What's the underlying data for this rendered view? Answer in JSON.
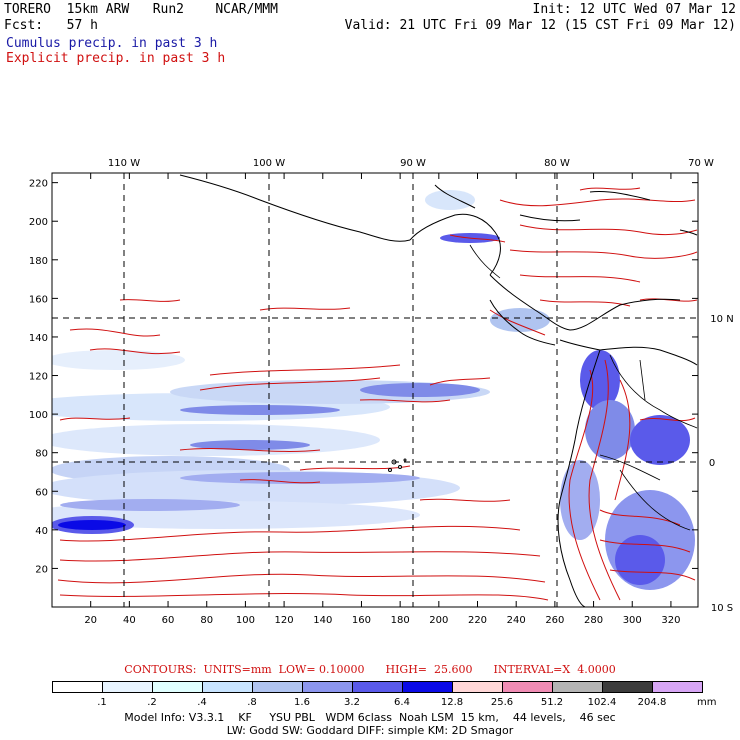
{
  "header": {
    "model": "TORERO  15km ARW   Run2    NCAR/MMM",
    "init": "Init: 12 UTC Wed 07 Mar 12",
    "fcst": "Fcst:   57 h",
    "valid": "Valid: 21 UTC Fri 09 Mar 12 (15 CST Fri 09 Mar 12)",
    "cumulus_label": "Cumulus precip. in past 3 h",
    "explicit_label": "Explicit precip. in past 3 h",
    "cumulus_color": "#1a1aa6",
    "explicit_color": "#d01010"
  },
  "map": {
    "lon_labels": [
      "110 W",
      "100 W",
      "90 W",
      "80 W",
      "70 W"
    ],
    "lat_labels": [
      "10 N",
      "0",
      "10 S"
    ],
    "y_ticks": [
      "20",
      "40",
      "60",
      "80",
      "100",
      "120",
      "140",
      "160",
      "180",
      "200",
      "220"
    ],
    "x_ticks": [
      "20",
      "40",
      "60",
      "80",
      "100",
      "120",
      "140",
      "160",
      "180",
      "200",
      "220",
      "240",
      "260",
      "280",
      "300",
      "320"
    ],
    "land_outline_color": "#000000",
    "grid_style": "dashed"
  },
  "contour_info": {
    "text": "CONTOURS:  UNITS=mm  LOW= 0.10000      HIGH=  25.600      INTERVAL=X  4.0000"
  },
  "colorbar": {
    "labels": [
      ".1",
      ".2",
      ".4",
      ".8",
      "1.6",
      "3.2",
      "6.4",
      "12.8",
      "25.6",
      "51.2",
      "102.4",
      "204.8"
    ],
    "unit": "mm",
    "colors": [
      "#ffffff",
      "#e8f4ff",
      "#e0ffff",
      "#c8e4ff",
      "#b0c4f0",
      "#8c96ee",
      "#5a5aea",
      "#0a0ae6",
      "#ffd7d7",
      "#f08cb4",
      "#b4b4b4",
      "#3c3c3c",
      "#d7a6f5"
    ]
  },
  "model_info": {
    "line1": "Model Info: V3.3.1    KF     YSU PBL   WDM 6class  Noah LSM  15 km,    44 levels,    46 sec",
    "line2": "LW: Godd SW: Goddard DIFF: simple KM: 2D Smagor"
  }
}
